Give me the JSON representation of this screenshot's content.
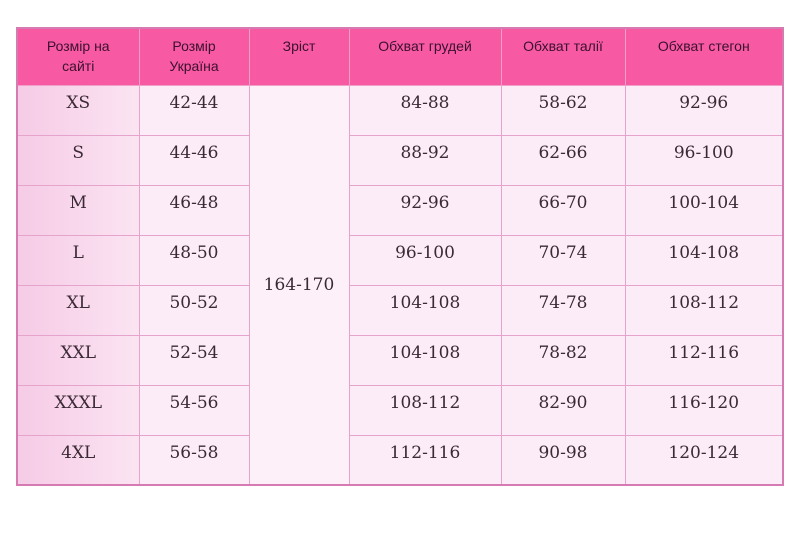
{
  "headers": [
    "Розмір на сайті",
    "Розмір Україна",
    "Зріст",
    "Обхват грудей",
    "Обхват талії",
    "Обхват стегон"
  ],
  "height_value": "164-170",
  "rows": [
    [
      "XS",
      "42-44",
      "84-88",
      "58-62",
      "92-96"
    ],
    [
      "S",
      "44-46",
      "88-92",
      "62-66",
      "96-100"
    ],
    [
      "M",
      "46-48",
      "92-96",
      "66-70",
      "100-104"
    ],
    [
      "L",
      "48-50",
      "96-100",
      "70-74",
      "104-108"
    ],
    [
      "XL",
      "50-52",
      "104-108",
      "74-78",
      "108-112"
    ],
    [
      "XXL",
      "52-54",
      "104-108",
      "78-82",
      "112-116"
    ],
    [
      "XXXL",
      "54-56",
      "108-112",
      "82-90",
      "116-120"
    ],
    [
      "4XL",
      "56-58",
      "112-116",
      "90-98",
      "120-124"
    ]
  ],
  "colors": {
    "header": "#f75aa2",
    "body": "#fcecf7",
    "border": "#d67ab2"
  }
}
